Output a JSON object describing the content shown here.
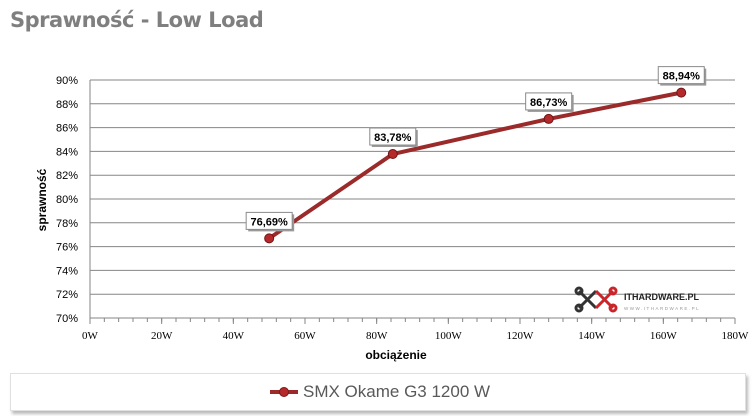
{
  "chart_data": {
    "type": "line",
    "title": "Sprawność - Low Load",
    "xlabel": "obciążenie",
    "ylabel": "sprawność",
    "xlim": [
      0,
      180
    ],
    "ylim": [
      70,
      90
    ],
    "x_ticks": [
      "0W",
      "20W",
      "40W",
      "60W",
      "80W",
      "100W",
      "120W",
      "140W",
      "160W",
      "180W"
    ],
    "y_ticks": [
      "70%",
      "72%",
      "74%",
      "76%",
      "78%",
      "80%",
      "82%",
      "84%",
      "86%",
      "88%",
      "90%"
    ],
    "grid": true,
    "legend_position": "bottom",
    "series": [
      {
        "name": "SMX Okame G3 1200 W",
        "color": "#9b2a2a",
        "x": [
          50,
          84.5,
          128,
          165
        ],
        "y": [
          76.69,
          83.78,
          86.73,
          88.94
        ],
        "labels": [
          "76,69%",
          "83,78%",
          "86,73%",
          "88,94%"
        ]
      }
    ]
  },
  "watermark": {
    "brand": "ITHARDWARE.PL",
    "url": "WWW.ITHARDWARE.PL"
  }
}
